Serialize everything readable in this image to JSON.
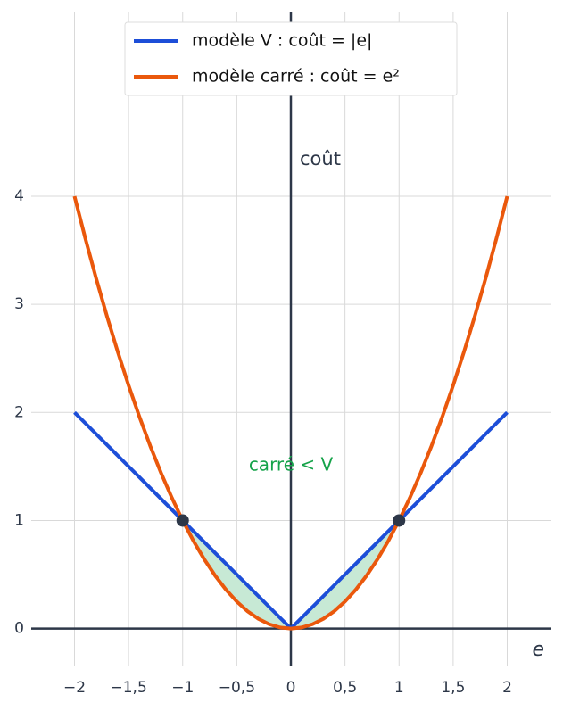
{
  "chart_data": {
    "type": "line",
    "x": [
      -2,
      -1.9,
      -1.8,
      -1.7,
      -1.6,
      -1.5,
      -1.4,
      -1.3,
      -1.2,
      -1.1,
      -1,
      -0.9,
      -0.8,
      -0.7,
      -0.6,
      -0.5,
      -0.4,
      -0.3,
      -0.2,
      -0.1,
      0,
      0.1,
      0.2,
      0.3,
      0.4,
      0.5,
      0.6,
      0.7,
      0.8,
      0.9,
      1,
      1.1,
      1.2,
      1.3,
      1.4,
      1.5,
      1.6,
      1.7,
      1.8,
      1.9,
      2
    ],
    "series": [
      {
        "name": "modèle V : coût  = |e|",
        "color": "#1d4ed8",
        "values": [
          2,
          1.9,
          1.8,
          1.7,
          1.6,
          1.5,
          1.4,
          1.3,
          1.2,
          1.1,
          1,
          0.9,
          0.8,
          0.7,
          0.6,
          0.5,
          0.4,
          0.3,
          0.2,
          0.1,
          0,
          0.1,
          0.2,
          0.3,
          0.4,
          0.5,
          0.6,
          0.7,
          0.8,
          0.9,
          1,
          1.1,
          1.2,
          1.3,
          1.4,
          1.5,
          1.6,
          1.7,
          1.8,
          1.9,
          2
        ]
      },
      {
        "name": "modèle carré : coût  = e²",
        "color": "#ea580c",
        "values": [
          4,
          3.61,
          3.24,
          2.89,
          2.56,
          2.25,
          1.96,
          1.69,
          1.44,
          1.21,
          1,
          0.81,
          0.64,
          0.49,
          0.36,
          0.25,
          0.16,
          0.09,
          0.04,
          0.01,
          0,
          0.01,
          0.04,
          0.09,
          0.16,
          0.25,
          0.36,
          0.49,
          0.64,
          0.81,
          1,
          1.21,
          1.44,
          1.69,
          1.96,
          2.25,
          2.56,
          2.89,
          3.24,
          3.61,
          4
        ]
      }
    ],
    "points": {
      "x": [
        -1,
        1
      ],
      "values": [
        1,
        1
      ],
      "color": "#2d3748"
    },
    "fill_color": "#c7e9d5",
    "x_label": "e",
    "y_label": "coût",
    "annotation": {
      "text": "carré < V",
      "color": "#16a34a"
    },
    "xlim": [
      -2.4,
      2.4
    ],
    "ylim": [
      -0.35,
      5.7
    ],
    "xticks": [
      {
        "value": -2,
        "label": "−2"
      },
      {
        "value": -1.5,
        "label": "−1,5"
      },
      {
        "value": -1,
        "label": "−1"
      },
      {
        "value": -0.5,
        "label": "−0,5"
      },
      0,
      {
        "value": 0.5,
        "label": "0,5"
      },
      1,
      {
        "value": 1.5,
        "label": "1,5"
      },
      2
    ],
    "yticks": [
      0,
      1,
      2,
      3,
      4
    ],
    "grid": true
  }
}
